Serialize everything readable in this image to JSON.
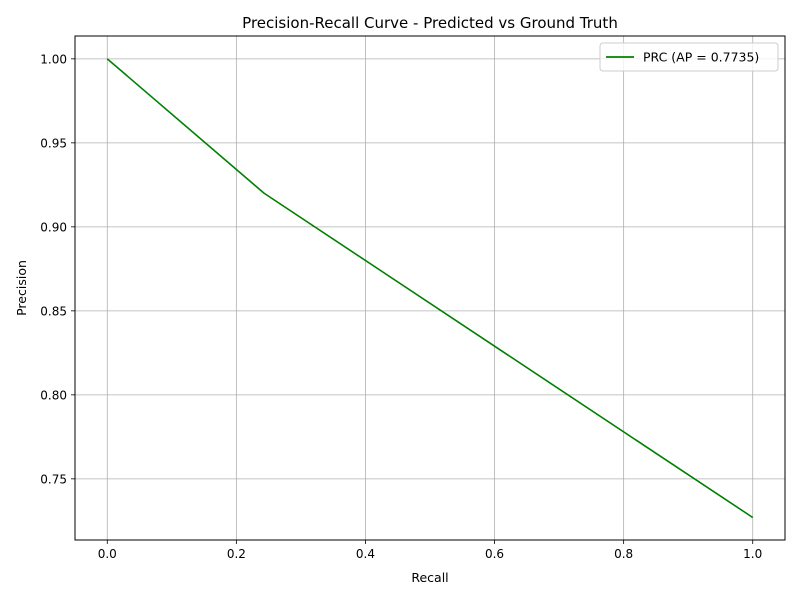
{
  "chart_data": {
    "type": "line",
    "title": "Precision-Recall Curve - Predicted vs Ground Truth",
    "xlabel": "Recall",
    "ylabel": "Precision",
    "xlim": [
      -0.05,
      1.05
    ],
    "ylim": [
      0.7136,
      1.0136
    ],
    "xticks": [
      0.0,
      0.2,
      0.4,
      0.6,
      0.8,
      1.0
    ],
    "xtick_labels": [
      "0.0",
      "0.2",
      "0.4",
      "0.6",
      "0.8",
      "1.0"
    ],
    "yticks": [
      0.75,
      0.8,
      0.85,
      0.9,
      0.95,
      1.0
    ],
    "ytick_labels": [
      "0.75",
      "0.80",
      "0.85",
      "0.90",
      "0.95",
      "1.00"
    ],
    "grid": true,
    "legend_position": "top-right",
    "series": [
      {
        "name": "PRC (AP = 0.7735)",
        "color": "#008000",
        "x": [
          0.0,
          0.243,
          1.0
        ],
        "y": [
          1.0,
          0.92,
          0.727
        ]
      }
    ]
  }
}
